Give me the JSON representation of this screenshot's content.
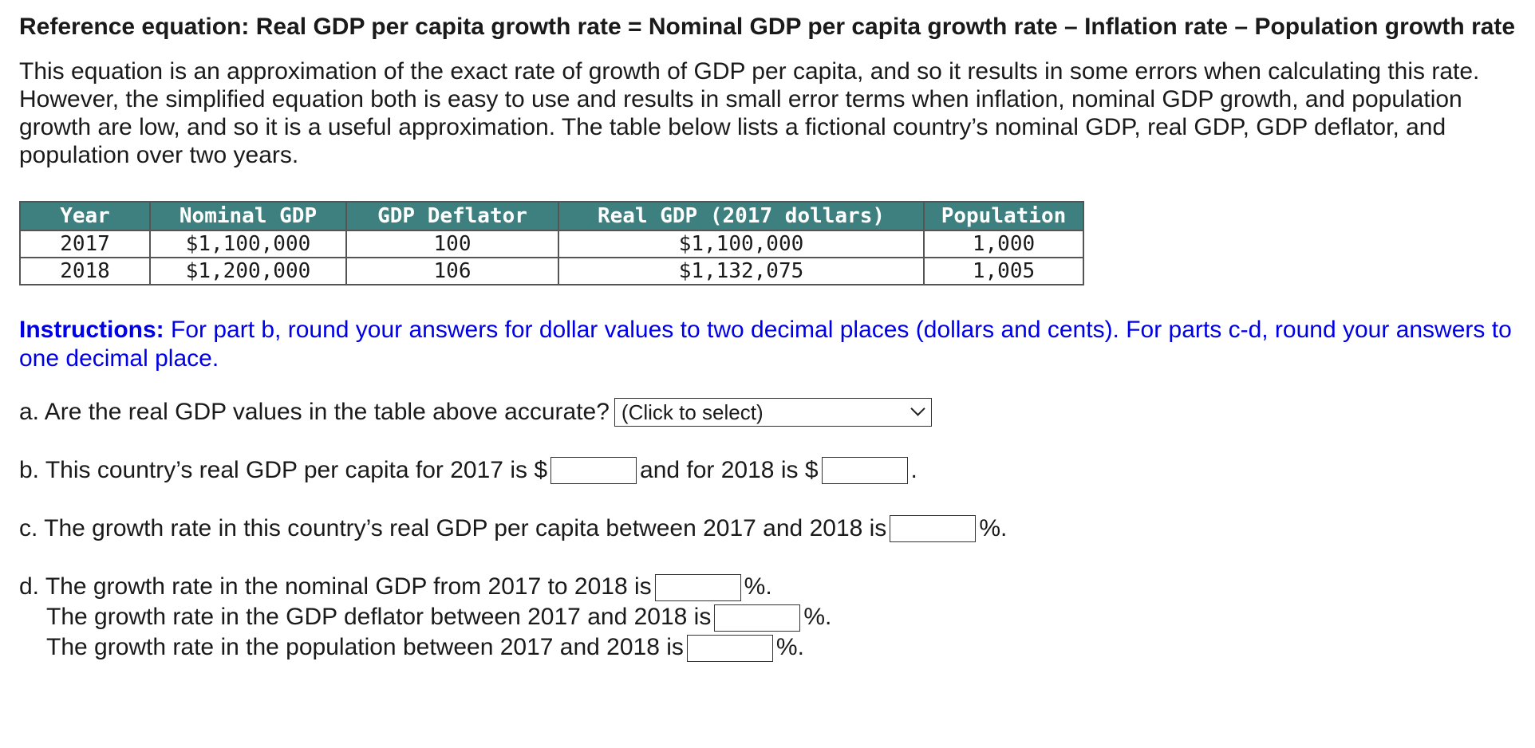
{
  "reference_equation": "Reference equation: Real GDP per capita growth rate = Nominal GDP per capita growth rate – Inflation rate – Population growth rate",
  "paragraph": "This equation is an approximation of the exact rate of growth of GDP per capita, and so it results in some errors when calculating this rate. However, the simplified equation both is easy to use and results in small error terms when inflation, nominal GDP growth, and population growth are low, and so it is a useful approximation. The table below lists a fictional country’s nominal GDP, real GDP, GDP deflator, and population over two years.",
  "table": {
    "headers": [
      "Year",
      "Nominal GDP",
      "GDP Deflator",
      "Real GDP (2017 dollars)",
      "Population"
    ],
    "rows": [
      [
        "2017",
        "$1,100,000",
        "100",
        "$1,100,000",
        "1,000"
      ],
      [
        "2018",
        "$1,200,000",
        "106",
        "$1,132,075",
        "1,005"
      ]
    ],
    "header_color": "#3e7f80"
  },
  "instructions": {
    "label": "Instructions:",
    "text": " For part b, round your answers for dollar values to two decimal places (dollars and cents). For parts c-d, round your answers to one decimal place.",
    "color": "#0000e6"
  },
  "questions": {
    "a": {
      "text": "a. Are the real GDP values in the table above accurate?",
      "select_value": "(Click to select)"
    },
    "b": {
      "text1": "b. This country’s real GDP per capita for 2017 is $",
      "text2": "and for 2018 is $",
      "text3": "."
    },
    "c": {
      "text": "c. The growth rate in this country’s real GDP per capita between 2017 and 2018 is",
      "unit": "%."
    },
    "d": {
      "line1": "d. The growth rate in the nominal GDP from 2017 to 2018 is",
      "line2": "The growth rate in the GDP deflator between 2017 and 2018 is",
      "line3": "The growth rate in the population between 2017 and 2018 is",
      "unit": "%."
    }
  }
}
